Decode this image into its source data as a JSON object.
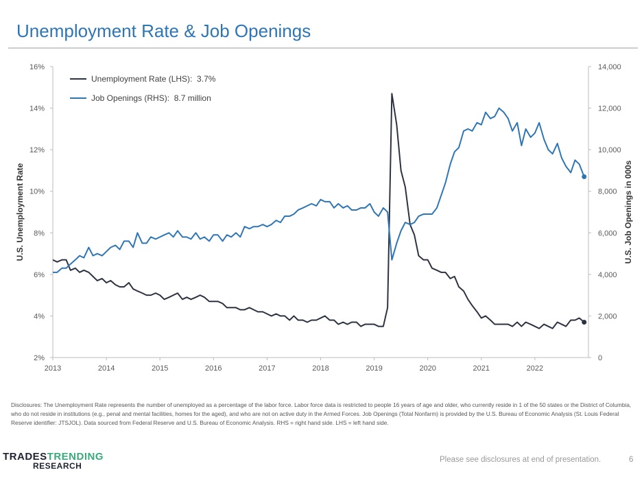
{
  "chart_data": {
    "type": "line",
    "title": "Unemployment Rate & Job Openings",
    "ylabel": "U.S. Unemployment Rate",
    "y2label": "U.S. Job Openings in 000s",
    "xlim": [
      2013,
      2023
    ],
    "xticks": [
      2013,
      2014,
      2015,
      2016,
      2017,
      2018,
      2019,
      2020,
      2021,
      2022
    ],
    "ylim": [
      2,
      16
    ],
    "yticks": [
      {
        "value": 2,
        "label": "2%"
      },
      {
        "value": 4,
        "label": "4%"
      },
      {
        "value": 6,
        "label": "6%"
      },
      {
        "value": 8,
        "label": "8%"
      },
      {
        "value": 10,
        "label": "10%"
      },
      {
        "value": 12,
        "label": "12%"
      },
      {
        "value": 14,
        "label": "14%"
      },
      {
        "value": 16,
        "label": "16%"
      }
    ],
    "y2lim": [
      0,
      14000
    ],
    "y2ticks": [
      0,
      {
        "value": 2000,
        "label": "2,000"
      },
      {
        "value": 4000,
        "label": "4,000"
      },
      {
        "value": 6000,
        "label": "6,000"
      },
      {
        "value": 8000,
        "label": "8,000"
      },
      {
        "value": 10000,
        "label": "10,000"
      },
      {
        "value": 12000,
        "label": "12,000"
      },
      {
        "value": 14000,
        "label": "14,000"
      }
    ],
    "legend": "upper left",
    "x": [
      2013,
      2013.08,
      2013.17,
      2013.25,
      2013.33,
      2013.42,
      2013.5,
      2013.58,
      2013.67,
      2013.75,
      2013.83,
      2013.92,
      2014,
      2014.08,
      2014.17,
      2014.25,
      2014.33,
      2014.42,
      2014.5,
      2014.58,
      2014.67,
      2014.75,
      2014.83,
      2014.92,
      2015,
      2015.08,
      2015.17,
      2015.25,
      2015.33,
      2015.42,
      2015.5,
      2015.58,
      2015.67,
      2015.75,
      2015.83,
      2015.92,
      2016,
      2016.08,
      2016.17,
      2016.25,
      2016.33,
      2016.42,
      2016.5,
      2016.58,
      2016.67,
      2016.75,
      2016.83,
      2016.92,
      2017,
      2017.08,
      2017.17,
      2017.25,
      2017.33,
      2017.42,
      2017.5,
      2017.58,
      2017.67,
      2017.75,
      2017.83,
      2017.92,
      2018,
      2018.08,
      2018.17,
      2018.25,
      2018.33,
      2018.42,
      2018.5,
      2018.58,
      2018.67,
      2018.75,
      2018.83,
      2018.92,
      2019,
      2019.08,
      2019.17,
      2019.25,
      2019.33,
      2019.42,
      2019.5,
      2019.58,
      2019.67,
      2019.75,
      2019.83,
      2019.92,
      2020,
      2020.08,
      2020.17,
      2020.25,
      2020.33,
      2020.42,
      2020.5,
      2020.58,
      2020.67,
      2020.75,
      2020.83,
      2020.92,
      2021,
      2021.08,
      2021.17,
      2021.25,
      2021.33,
      2021.42,
      2021.5,
      2021.58,
      2021.67,
      2021.75,
      2021.83,
      2021.92,
      2022,
      2022.08,
      2022.17,
      2022.25,
      2022.33,
      2022.42,
      2022.5,
      2022.58,
      2022.67,
      2022.75,
      2022.83,
      2022.92
    ],
    "series": [
      {
        "name": "Unemployment Rate (LHS):  3.7%",
        "color": "#2b3240",
        "axis": "y",
        "end_marker": true,
        "values": [
          6.7,
          6.6,
          6.7,
          6.7,
          6.2,
          6.3,
          6.1,
          6.2,
          6.1,
          5.9,
          5.7,
          5.8,
          5.6,
          5.7,
          5.5,
          5.4,
          5.4,
          5.6,
          5.3,
          5.2,
          5.1,
          5.0,
          5.0,
          5.1,
          5.0,
          4.8,
          4.9,
          5.0,
          5.1,
          4.8,
          4.9,
          4.8,
          4.9,
          5.0,
          4.9,
          4.7,
          4.7,
          4.7,
          4.6,
          4.4,
          4.4,
          4.4,
          4.3,
          4.3,
          4.4,
          4.3,
          4.2,
          4.2,
          4.1,
          4.0,
          4.1,
          4.0,
          4.0,
          3.8,
          4.0,
          3.8,
          3.8,
          3.7,
          3.8,
          3.8,
          3.9,
          4.0,
          3.8,
          3.8,
          3.6,
          3.7,
          3.6,
          3.7,
          3.7,
          3.5,
          3.6,
          3.6,
          3.6,
          3.5,
          3.5,
          4.4,
          14.7,
          13.2,
          11.0,
          10.2,
          8.4,
          7.9,
          6.9,
          6.7,
          6.7,
          6.3,
          6.2,
          6.1,
          6.1,
          5.8,
          5.9,
          5.4,
          5.2,
          4.8,
          4.5,
          4.2,
          3.9,
          4.0,
          3.8,
          3.6,
          3.6,
          3.6,
          3.6,
          3.5,
          3.7,
          3.5,
          3.7,
          3.6,
          3.5,
          3.4,
          3.6,
          3.5,
          3.4,
          3.7,
          3.6,
          3.5,
          3.8,
          3.8,
          3.9,
          3.7
        ]
      },
      {
        "name": "Job Openings (RHS):  8.7 million",
        "color": "#2e75b6",
        "axis": "y2",
        "end_marker": true,
        "values": [
          4100,
          4100,
          4300,
          4300,
          4500,
          4700,
          4900,
          4800,
          5300,
          4900,
          5000,
          4900,
          5100,
          5300,
          5400,
          5200,
          5600,
          5600,
          5300,
          6000,
          5500,
          5500,
          5800,
          5700,
          5800,
          5900,
          6000,
          5800,
          6100,
          5800,
          5800,
          5700,
          6000,
          5700,
          5800,
          5600,
          5900,
          5900,
          5600,
          5900,
          5800,
          6000,
          5800,
          6300,
          6200,
          6300,
          6300,
          6400,
          6300,
          6400,
          6600,
          6500,
          6800,
          6800,
          6900,
          7100,
          7200,
          7300,
          7400,
          7300,
          7600,
          7500,
          7500,
          7200,
          7400,
          7200,
          7300,
          7100,
          7100,
          7200,
          7200,
          7400,
          7000,
          6800,
          7200,
          7000,
          4700,
          5500,
          6100,
          6500,
          6400,
          6500,
          6800,
          6900,
          6900,
          6900,
          7200,
          7800,
          8400,
          9300,
          9900,
          10100,
          10900,
          11000,
          10900,
          11300,
          11200,
          11800,
          11500,
          11600,
          12000,
          11800,
          11500,
          10900,
          11300,
          10200,
          11000,
          10600,
          10800,
          11300,
          10500,
          10000,
          9800,
          10300,
          9600,
          9200,
          8900,
          9500,
          9300,
          8700
        ]
      }
    ]
  },
  "page": {
    "disclosure": "Disclosures: The Unemployment Rate represents the number of unemployed as a percentage of the labor force. Labor force data is restricted to people 16 years of age and older, who currently reside in 1 of the 50 states or the District of  Columbia, who do not reside in institutions (e.g., penal and mental facilities, homes for the aged), and who are not on active duty in the Armed Forces. Job Openings (Total Nonfarm) is provided by the U.S. Bureau of Economic Analysis (St.  Louis Federal Reserve identifier: JTSJOL). Data sourced from Federal Reserve and U.S. Bureau of Economic Analysis. RHS = right hand side. LHS = left hand side.",
    "logo_word1": "TRADES",
    "logo_word2": "TRENDING",
    "logo_word3": "RESEARCH",
    "footer": "Please see disclosures at end of presentation.",
    "page_number": "6"
  }
}
